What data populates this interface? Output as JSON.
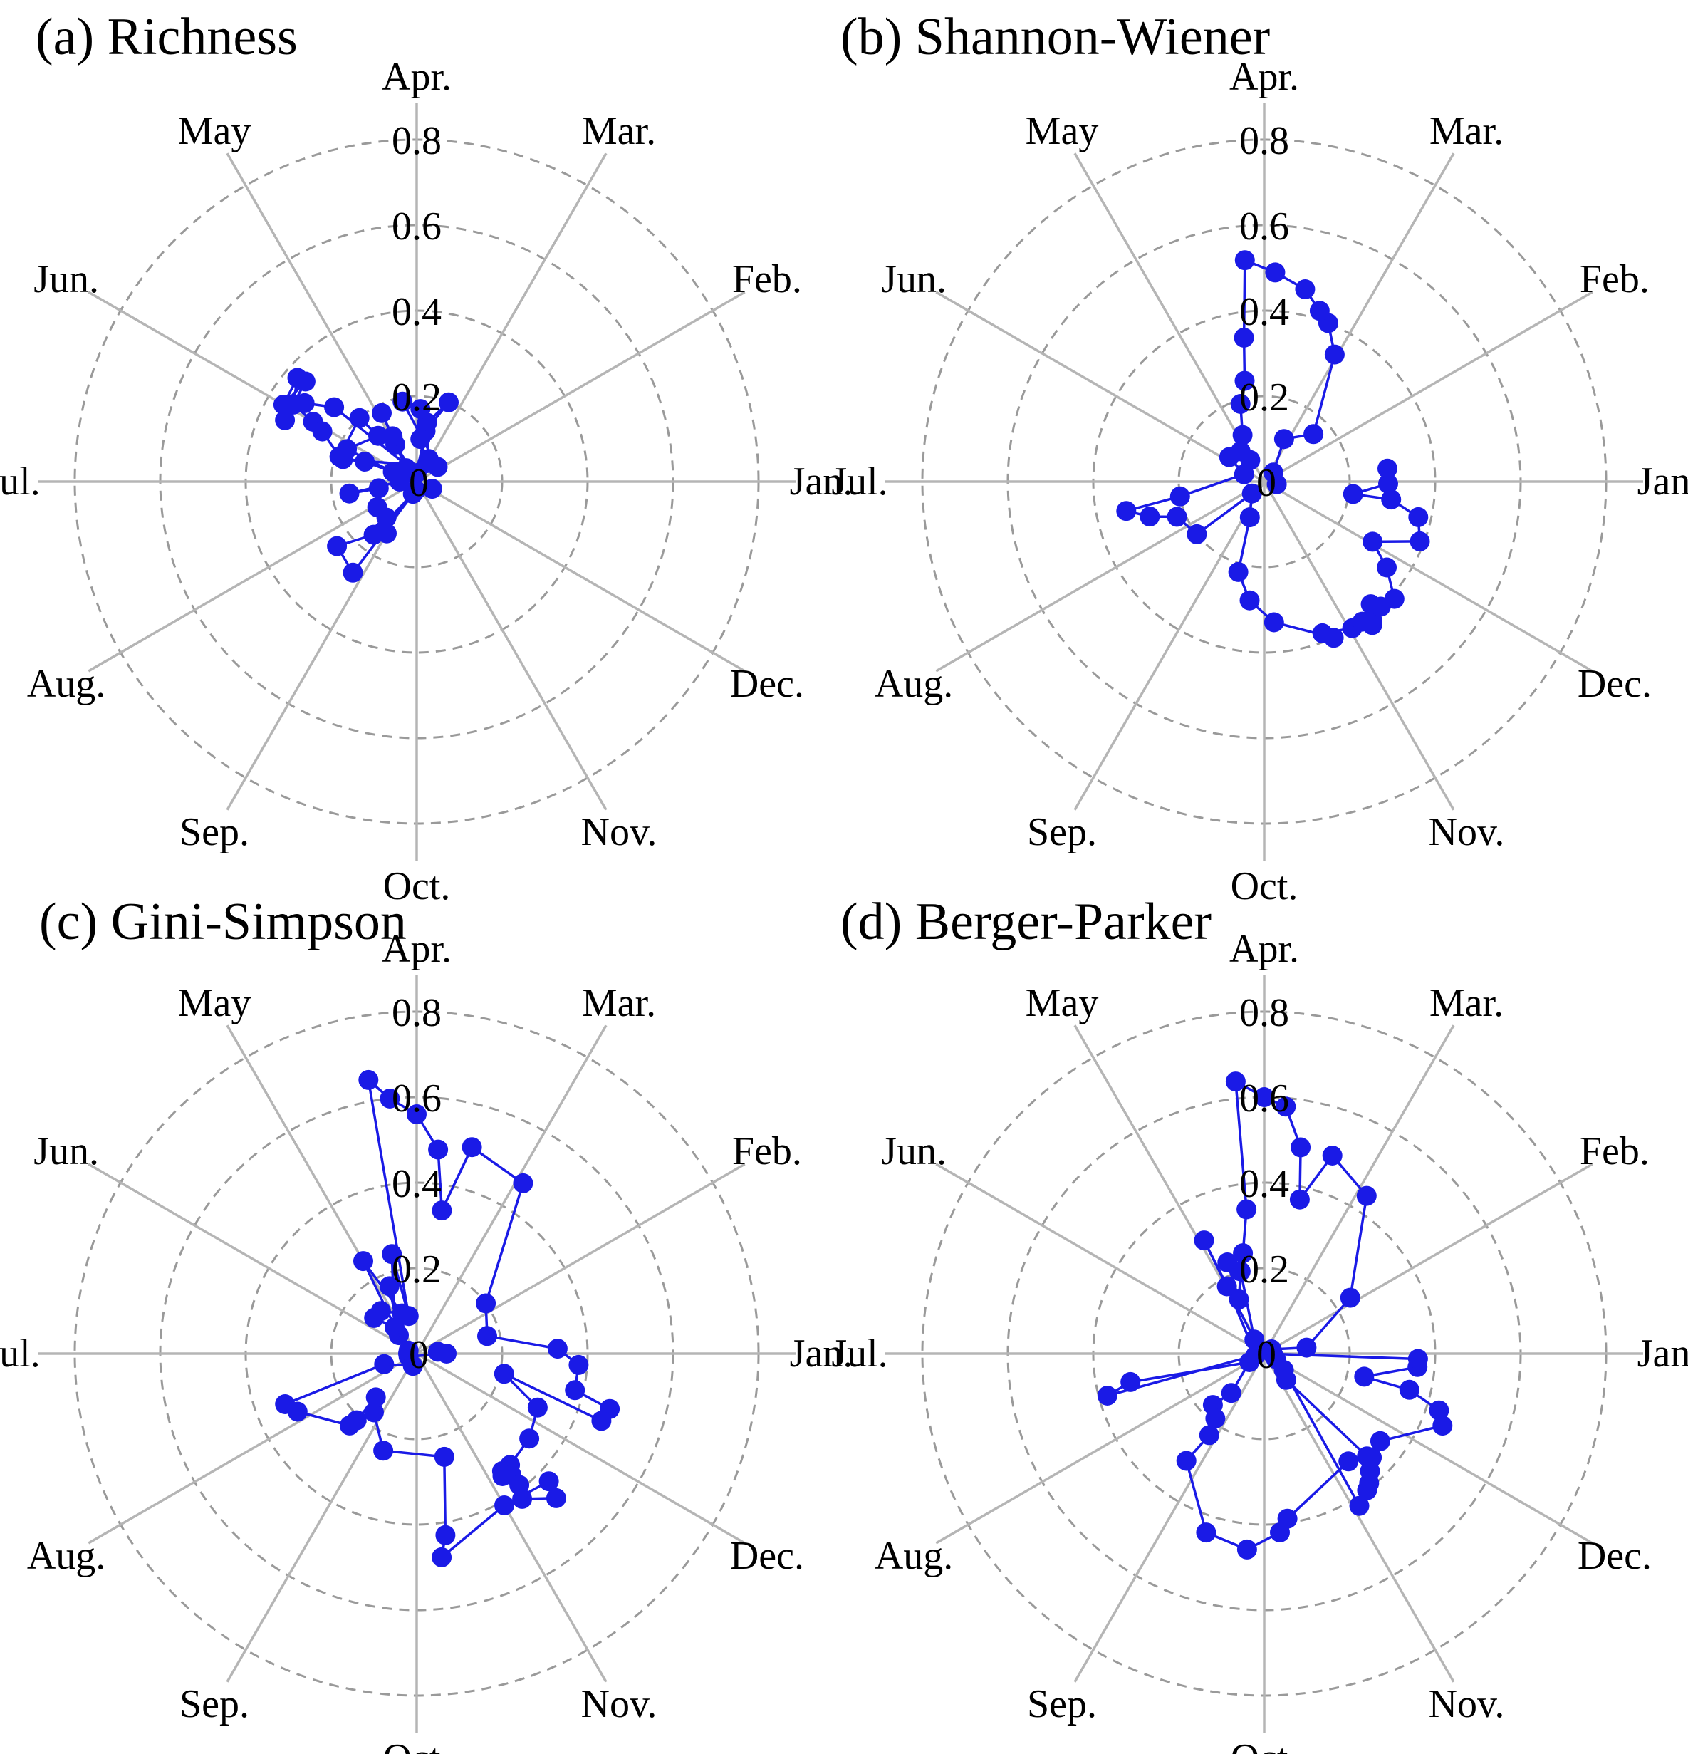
{
  "figure": {
    "month_order": [
      "Jan.",
      "Feb.",
      "Mar.",
      "Apr.",
      "May",
      "Jun.",
      "Jul.",
      "Aug.",
      "Sep.",
      "Oct.",
      "Nov.",
      "Dec."
    ],
    "radial_ticks": [
      "0",
      "0.2",
      "0.4",
      "0.6",
      "0.8"
    ],
    "line_color": "#1a1ae6"
  },
  "chart_data": [
    {
      "type": "line",
      "subtype": "polar",
      "title": "(a) Richness",
      "angle_axis": "month, Jan. at 0°, counter-clockwise, Apr. at top",
      "rlim": [
        0,
        0.8
      ],
      "radial_ticks": [
        0,
        0.2,
        0.4,
        0.6,
        0.8
      ],
      "grid": true,
      "points": [
        [
          0.06,
          62
        ],
        [
          0.14,
          80
        ],
        [
          0.2,
          68
        ],
        [
          0.12,
          80
        ],
        [
          0.02,
          90
        ],
        [
          0.26,
          138
        ],
        [
          0.32,
          145
        ],
        [
          0.34,
          155
        ],
        [
          0.35,
          138
        ],
        [
          0.36,
          150
        ],
        [
          0.37,
          139
        ],
        [
          0.34,
          148
        ],
        [
          0.28,
          150
        ],
        [
          0.25,
          152
        ],
        [
          0.19,
          162
        ],
        [
          0.2,
          132
        ],
        [
          0.14,
          130
        ],
        [
          0.18,
          155
        ],
        [
          0.06,
          158
        ],
        [
          0.13,
          159
        ],
        [
          0.18,
          163
        ],
        [
          0.06,
          35
        ],
        [
          0.19,
          100
        ],
        [
          0.17,
          87
        ],
        [
          0.1,
          85
        ],
        [
          0.05,
          60
        ],
        [
          0.02,
          110
        ],
        [
          0.1,
          120
        ],
        [
          0.12,
          118
        ],
        [
          0.18,
          117
        ],
        [
          0.04,
          128
        ],
        [
          0.04,
          180
        ],
        [
          0.16,
          190
        ],
        [
          0.09,
          190
        ],
        [
          0.11,
          213
        ],
        [
          0.11,
          230
        ],
        [
          0.14,
          240
        ],
        [
          0.14,
          236
        ],
        [
          0.03,
          253
        ],
        [
          0.16,
          231
        ],
        [
          0.24,
          219
        ],
        [
          0.26,
          235
        ],
        [
          0.02,
          265
        ],
        [
          0.04,
          335
        ]
      ]
    },
    {
      "type": "line",
      "subtype": "polar",
      "title": "(b) Shannon-Wiener",
      "angle_axis": "month, Jan. at 0°, counter-clockwise, Apr. at top",
      "rlim": [
        0,
        0.8
      ],
      "radial_ticks": [
        0,
        0.2,
        0.4,
        0.6,
        0.8
      ],
      "grid": true,
      "points": [
        [
          0.03,
          348
        ],
        [
          0.03,
          45
        ],
        [
          0.11,
          65
        ],
        [
          0.16,
          44
        ],
        [
          0.34,
          61
        ],
        [
          0.4,
          68
        ],
        [
          0.42,
          72
        ],
        [
          0.46,
          78
        ],
        [
          0.49,
          87
        ],
        [
          0.52,
          95
        ],
        [
          0.34,
          98
        ],
        [
          0.24,
          101
        ],
        [
          0.19,
          107
        ],
        [
          0.12,
          115
        ],
        [
          0.06,
          123
        ],
        [
          0.09,
          128
        ],
        [
          0.1,
          145
        ],
        [
          0.05,
          160
        ],
        [
          0.2,
          190
        ],
        [
          0.33,
          192
        ],
        [
          0.28,
          197
        ],
        [
          0.22,
          202
        ],
        [
          0.2,
          218
        ],
        [
          0.04,
          224
        ],
        [
          0.09,
          248
        ],
        [
          0.22,
          254
        ],
        [
          0.28,
          263
        ],
        [
          0.33,
          274
        ],
        [
          0.4,
          294
        ],
        [
          0.38,
          291
        ],
        [
          0.4,
          301
        ],
        [
          0.4,
          305
        ],
        [
          0.41,
          308
        ],
        [
          0.42,
          307
        ],
        [
          0.38,
          311
        ],
        [
          0.4,
          313
        ],
        [
          0.41,
          318
        ],
        [
          0.35,
          325
        ],
        [
          0.29,
          331
        ],
        [
          0.39,
          339
        ],
        [
          0.37,
          347
        ],
        [
          0.3,
          352
        ],
        [
          0.21,
          352
        ],
        [
          0.29,
          359
        ],
        [
          0.29,
          6
        ]
      ]
    },
    {
      "type": "line",
      "subtype": "polar",
      "title": "(c) Gini-Simpson",
      "angle_axis": "month, Jan. at 0°, counter-clockwise, Apr. at top",
      "rlim": [
        0,
        0.8
      ],
      "radial_ticks": [
        0,
        0.2,
        0.4,
        0.6,
        0.8
      ],
      "grid": true,
      "points": [
        [
          0.05,
          5
        ],
        [
          0.07,
          0
        ],
        [
          0.02,
          200
        ],
        [
          0.02,
          180
        ],
        [
          0.02,
          160
        ],
        [
          0.17,
          112
        ],
        [
          0.06,
          134
        ],
        [
          0.25,
          120
        ],
        [
          0.1,
          110
        ],
        [
          0.13,
          130
        ],
        [
          0.13,
          140
        ],
        [
          0.08,
          130
        ],
        [
          0.24,
          104
        ],
        [
          0.09,
          102
        ],
        [
          0.65,
          100
        ],
        [
          0.6,
          96
        ],
        [
          0.56,
          90
        ],
        [
          0.48,
          84
        ],
        [
          0.34,
          80
        ],
        [
          0.5,
          75
        ],
        [
          0.47,
          58
        ],
        [
          0.2,
          36
        ],
        [
          0.17,
          14
        ],
        [
          0.33,
          2
        ],
        [
          0.38,
          356
        ],
        [
          0.38,
          347
        ],
        [
          0.47,
          344
        ],
        [
          0.46,
          340
        ],
        [
          0.21,
          347
        ],
        [
          0.31,
          336
        ],
        [
          0.33,
          323
        ],
        [
          0.34,
          310
        ],
        [
          0.34,
          306
        ],
        [
          0.36,
          308
        ],
        [
          0.35,
          305
        ],
        [
          0.39,
          308
        ],
        [
          0.42,
          306
        ],
        [
          0.47,
          314
        ],
        [
          0.43,
          316
        ],
        [
          0.41,
          300
        ],
        [
          0.48,
          277
        ],
        [
          0.43,
          279
        ],
        [
          0.25,
          285
        ],
        [
          0.24,
          251
        ],
        [
          0.17,
          234
        ],
        [
          0.14,
          227
        ],
        [
          0.21,
          228
        ],
        [
          0.23,
          227
        ],
        [
          0.31,
          206
        ],
        [
          0.33,
          201
        ],
        [
          0.08,
          198
        ],
        [
          0.03,
          253
        ]
      ]
    },
    {
      "type": "line",
      "subtype": "polar",
      "title": "(d) Berger-Parker",
      "angle_axis": "month, Jan. at 0°, counter-clockwise, Apr. at top",
      "rlim": [
        0,
        0.8
      ],
      "radial_ticks": [
        0,
        0.2,
        0.4,
        0.6,
        0.8
      ],
      "grid": true,
      "points": [
        [
          0.02,
          30
        ],
        [
          0.1,
          8
        ],
        [
          0.24,
          33
        ],
        [
          0.44,
          57
        ],
        [
          0.49,
          71
        ],
        [
          0.37,
          77
        ],
        [
          0.49,
          80
        ],
        [
          0.58,
          85
        ],
        [
          0.6,
          90
        ],
        [
          0.64,
          96
        ],
        [
          0.34,
          97
        ],
        [
          0.24,
          102
        ],
        [
          0.23,
          112
        ],
        [
          0.14,
          115
        ],
        [
          0.2,
          106
        ],
        [
          0.04,
          125
        ],
        [
          0.3,
          118
        ],
        [
          0.18,
          119
        ],
        [
          0.02,
          190
        ],
        [
          0.38,
          195
        ],
        [
          0.32,
          192
        ],
        [
          0.04,
          210
        ],
        [
          0.12,
          230
        ],
        [
          0.17,
          225
        ],
        [
          0.19,
          233
        ],
        [
          0.23,
          236
        ],
        [
          0.31,
          234
        ],
        [
          0.44,
          252
        ],
        [
          0.46,
          265
        ],
        [
          0.42,
          275
        ],
        [
          0.39,
          278
        ],
        [
          0.32,
          308
        ],
        [
          0.34,
          315
        ],
        [
          0.08,
          310
        ],
        [
          0.06,
          320
        ],
        [
          0.42,
          302
        ],
        [
          0.4,
          307
        ],
        [
          0.39,
          309
        ],
        [
          0.37,
          312
        ],
        [
          0.35,
          316
        ],
        [
          0.34,
          323
        ],
        [
          0.45,
          338
        ],
        [
          0.43,
          342
        ],
        [
          0.35,
          346
        ],
        [
          0.24,
          347
        ],
        [
          0.36,
          355
        ],
        [
          0.36,
          358
        ],
        [
          0.02,
          358
        ],
        [
          0.03,
          335
        ]
      ]
    }
  ]
}
